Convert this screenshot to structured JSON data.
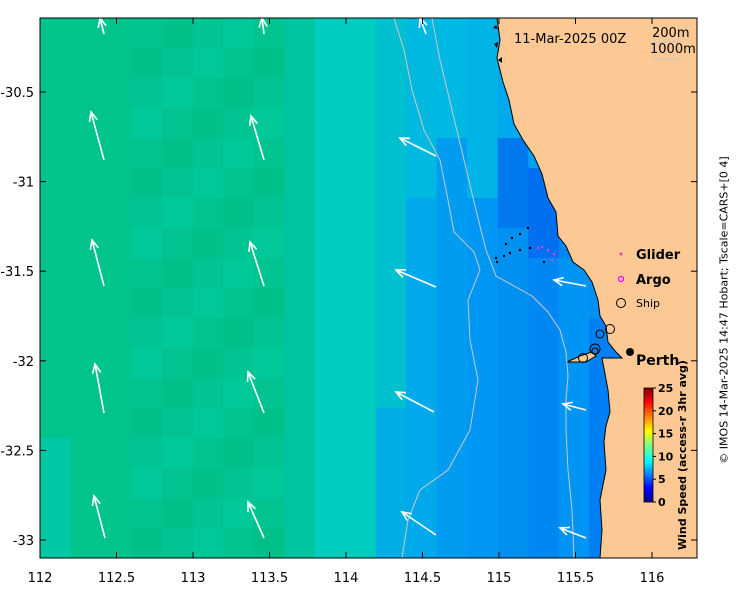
{
  "timestamp": "11-Mar-2025 00Z",
  "contours": {
    "shallow": "200m",
    "deep": "1000m"
  },
  "legend": {
    "glider": "Glider",
    "argo": "Argo",
    "ship": "Ship"
  },
  "places": {
    "perth": "Perth"
  },
  "colorbar": {
    "label": "Wind Speed (access-r 3hr avg)",
    "ticks": [
      "0",
      "5",
      "10",
      "15",
      "20",
      "25"
    ],
    "min": 0,
    "max": 25
  },
  "credit": "© IMOS 14-Mar-2025 14:47 Hobart; Tscale=CARS+[0 4]",
  "axes": {
    "x_ticks": [
      "112",
      "112.5",
      "113",
      "113.5",
      "114",
      "114.5",
      "115",
      "115.5",
      "116"
    ],
    "y_ticks": [
      "-30.5",
      "-31",
      "-31.5",
      "-32",
      "-32.5",
      "-33"
    ]
  },
  "colors": {
    "land": "#fcc994",
    "glider": "#e040e0",
    "argo": "#ff00ff"
  }
}
